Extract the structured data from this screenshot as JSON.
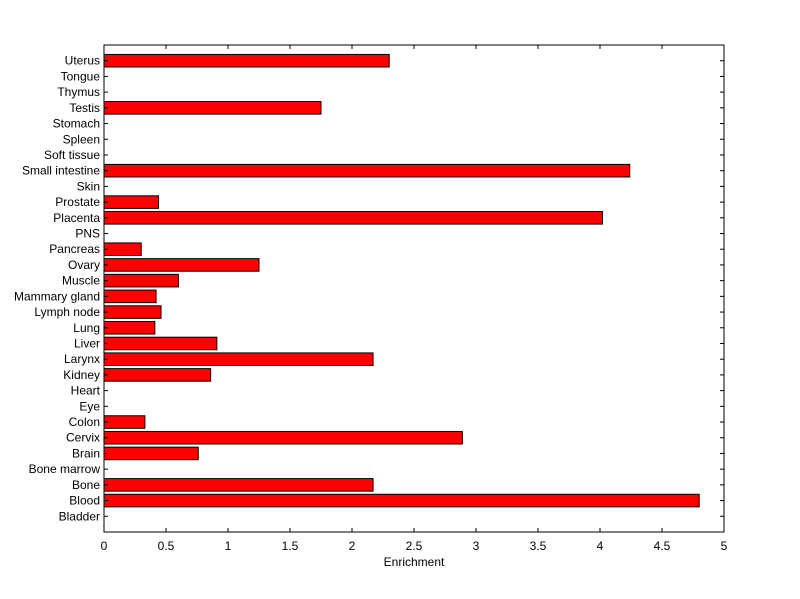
{
  "chart_data": {
    "type": "bar",
    "orientation": "horizontal",
    "title": "",
    "xlabel": "Enrichment",
    "ylabel": "",
    "xlim": [
      0,
      5
    ],
    "xticks": [
      "0",
      "0.5",
      "1",
      "1.5",
      "2",
      "2.5",
      "3",
      "3.5",
      "4",
      "4.5",
      "5"
    ],
    "grid": false,
    "legend": "none",
    "bar_color": "#ff0000",
    "edge_color": "#000000",
    "categories": [
      "Bladder",
      "Blood",
      "Bone",
      "Bone marrow",
      "Brain",
      "Cervix",
      "Colon",
      "Eye",
      "Heart",
      "Kidney",
      "Larynx",
      "Liver",
      "Lung",
      "Lymph node",
      "Mammary gland",
      "Muscle",
      "Ovary",
      "Pancreas",
      "PNS",
      "Placenta",
      "Prostate",
      "Skin",
      "Small intestine",
      "Soft tissue",
      "Spleen",
      "Stomach",
      "Testis",
      "Thymus",
      "Tongue",
      "Uterus"
    ],
    "values": [
      0,
      4.8,
      2.17,
      0,
      0.76,
      2.89,
      0.33,
      0,
      0,
      0.86,
      2.17,
      0.91,
      0.41,
      0.46,
      0.42,
      0.6,
      1.25,
      0.3,
      0,
      4.02,
      0.44,
      0,
      4.24,
      0,
      0,
      0,
      1.75,
      0,
      0,
      2.3
    ]
  }
}
